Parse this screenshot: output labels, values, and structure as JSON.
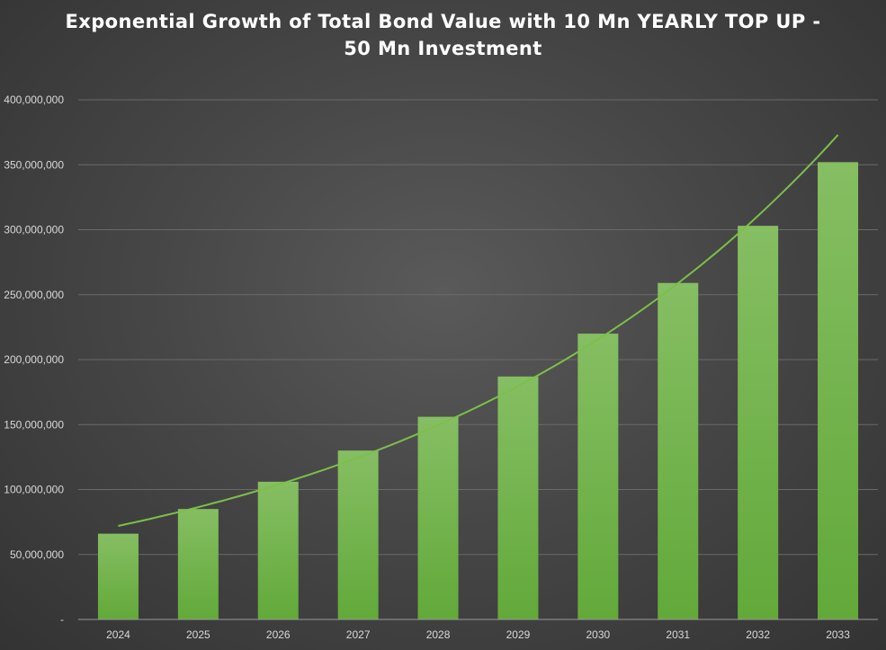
{
  "chart_data": {
    "type": "bar",
    "title_lines": [
      "Exponential Growth of Total Bond Value with 10 Mn YEARLY TOP UP -",
      "50 Mn Investment"
    ],
    "xlabel": "",
    "ylabel": "",
    "categories": [
      "2024",
      "2025",
      "2026",
      "2027",
      "2028",
      "2029",
      "2030",
      "2031",
      "2032",
      "2033"
    ],
    "values": [
      66000000,
      85000000,
      106000000,
      130000000,
      156000000,
      187000000,
      220000000,
      259000000,
      303000000,
      352000000
    ],
    "trendline": {
      "type": "exponential",
      "start_value": 72000000,
      "end_value": 373000000
    },
    "ylim": [
      0,
      400000000
    ],
    "yticks": [
      0,
      50000000,
      100000000,
      150000000,
      200000000,
      250000000,
      300000000,
      350000000,
      400000000
    ],
    "ytick_labels": [
      "-",
      "50,000,000",
      "100,000,000",
      "150,000,000",
      "200,000,000",
      "250,000,000",
      "300,000,000",
      "350,000,000",
      "400,000,000"
    ],
    "grid": true,
    "legend": "none",
    "colors": {
      "bar_top": "#86be63",
      "bar_bottom": "#62a93a",
      "trendline": "#7cbf4a",
      "grid": "#6a6a6a",
      "axis": "#9a9a9a",
      "tick_text": "#d9d9d9",
      "title": "#ffffff"
    }
  }
}
